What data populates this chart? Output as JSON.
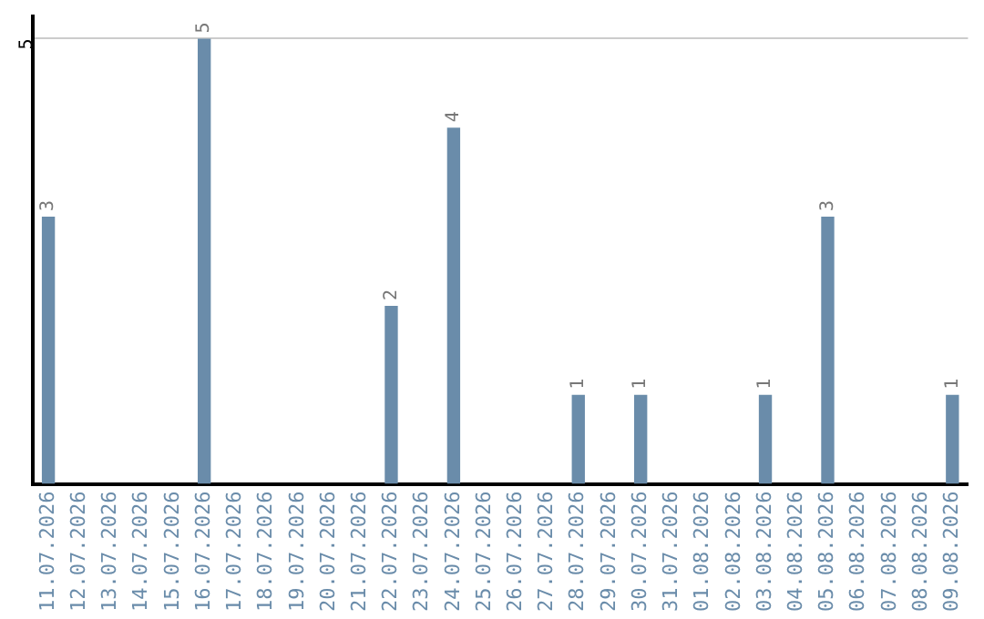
{
  "chart_data": {
    "type": "bar",
    "categories": [
      "11.07.2026",
      "12.07.2026",
      "13.07.2026",
      "14.07.2026",
      "15.07.2026",
      "16.07.2026",
      "17.07.2026",
      "18.07.2026",
      "19.07.2026",
      "20.07.2026",
      "21.07.2026",
      "22.07.2026",
      "23.07.2026",
      "24.07.2026",
      "25.07.2026",
      "26.07.2026",
      "27.07.2026",
      "28.07.2026",
      "29.07.2026",
      "30.07.2026",
      "31.07.2026",
      "01.08.2026",
      "02.08.2026",
      "03.08.2026",
      "04.08.2026",
      "05.08.2026",
      "06.08.2026",
      "07.08.2026",
      "08.08.2026",
      "09.08.2026"
    ],
    "values": [
      3,
      0,
      0,
      0,
      0,
      5,
      0,
      0,
      0,
      0,
      0,
      2,
      0,
      4,
      0,
      0,
      0,
      1,
      0,
      1,
      0,
      0,
      0,
      1,
      0,
      3,
      0,
      0,
      0,
      1
    ],
    "value_labels": [
      "3",
      null,
      null,
      null,
      null,
      "5",
      null,
      null,
      null,
      null,
      null,
      "2",
      null,
      "4",
      null,
      null,
      null,
      "1",
      null,
      "1",
      null,
      null,
      null,
      "1",
      null,
      "3",
      null,
      null,
      null,
      "1"
    ],
    "color": "#6a8caa",
    "ylim": [
      0,
      5.25
    ],
    "yticks": [
      5
    ],
    "grid": "y",
    "legend": false
  }
}
